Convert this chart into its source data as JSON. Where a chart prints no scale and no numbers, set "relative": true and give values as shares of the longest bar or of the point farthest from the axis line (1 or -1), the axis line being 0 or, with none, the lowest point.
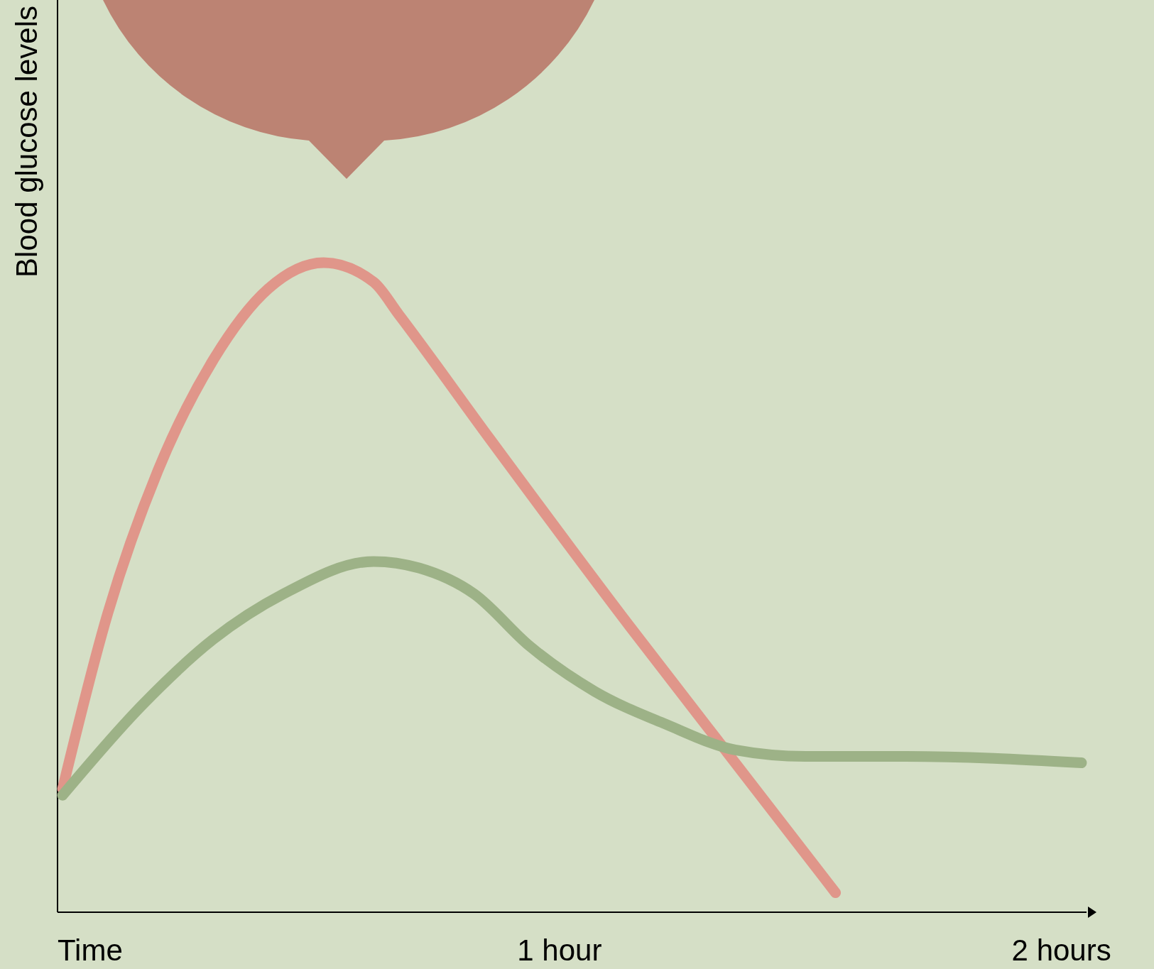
{
  "chart_data": {
    "type": "line",
    "relative": true,
    "xlabel": "Time",
    "ylabel": "Blood glucose levels",
    "xlim": [
      0,
      2.05
    ],
    "xticks": [
      {
        "value": 1,
        "label": "1 hour"
      },
      {
        "value": 2,
        "label": "2 hours"
      }
    ],
    "grid": false,
    "marker": "none",
    "line_style": "solid",
    "series": [
      {
        "color": "#e0968a",
        "x": [
          0.01,
          0.1,
          0.2,
          0.31,
          0.42,
          0.53,
          0.63,
          0.68,
          0.86,
          1.14,
          1.35,
          1.55
        ],
        "values": [
          0.19,
          0.46,
          0.68,
          0.85,
          0.96,
          1,
          0.97,
          0.92,
          0.73,
          0.44,
          0.23,
          0.03
        ]
      },
      {
        "color": "#9db287",
        "x": [
          0.01,
          0.17,
          0.31,
          0.45,
          0.63,
          0.72,
          0.83,
          0.94,
          1.07,
          1.21,
          1.35,
          1.49,
          1.69,
          2.04
        ],
        "values": [
          0.18,
          0.32,
          0.42,
          0.49,
          0.54,
          0.53,
          0.49,
          0.41,
          0.34,
          0.29,
          0.25,
          0.24,
          0.24,
          0.23
        ]
      }
    ]
  }
}
